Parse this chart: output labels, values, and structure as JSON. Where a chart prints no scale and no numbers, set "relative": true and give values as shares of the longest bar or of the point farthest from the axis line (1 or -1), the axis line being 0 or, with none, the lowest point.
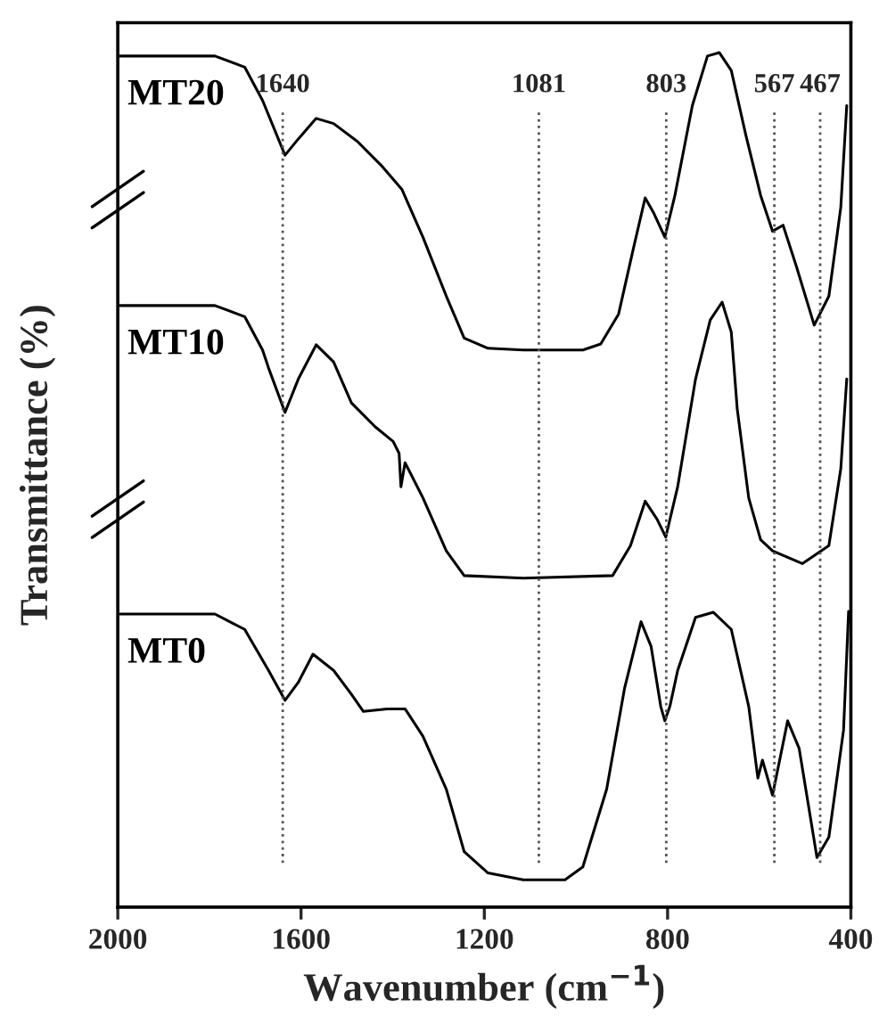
{
  "chart_data": {
    "type": "line",
    "relative": true,
    "xlabel": "Wavenumber (cm$^{−1}$)",
    "ylabel": "Transmittance (%)",
    "xlim": [
      2000,
      400
    ],
    "xticks": [
      2000,
      1600,
      1200,
      800,
      400
    ],
    "tick_labels": "x",
    "grid": false,
    "legend": false,
    "marker": "none",
    "line_style": "solid",
    "series": [
      {
        "name": "MT20",
        "color": "#000000",
        "x": [
          1995,
          1788,
          1723,
          1684,
          1635,
          1606,
          1567,
          1529,
          1477,
          1425,
          1380,
          1334,
          1283,
          1244,
          1192,
          1115,
          985,
          946,
          907,
          875,
          849,
          830,
          806,
          784,
          746,
          713,
          687,
          661,
          629,
          597,
          571,
          548,
          519,
          480,
          448,
          422,
          409
        ],
        "values": [
          0.996,
          0.996,
          0.983,
          0.944,
          0.88,
          0.899,
          0.923,
          0.917,
          0.896,
          0.868,
          0.84,
          0.784,
          0.715,
          0.666,
          0.654,
          0.652,
          0.652,
          0.659,
          0.694,
          0.77,
          0.83,
          0.812,
          0.784,
          0.833,
          0.938,
          0.996,
          1.0,
          0.979,
          0.903,
          0.833,
          0.791,
          0.798,
          0.75,
          0.681,
          0.715,
          0.819,
          0.938
        ]
      },
      {
        "name": "MT10",
        "color": "#000000",
        "x": [
          1995,
          1788,
          1723,
          1684,
          1671,
          1635,
          1606,
          1567,
          1529,
          1490,
          1438,
          1399,
          1386,
          1382,
          1373,
          1334,
          1283,
          1244,
          1115,
          920,
          881,
          849,
          823,
          804,
          778,
          739,
          707,
          681,
          661,
          648,
          623,
          597,
          571,
          506,
          448,
          422,
          409
        ],
        "values": [
          0.704,
          0.704,
          0.691,
          0.652,
          0.631,
          0.579,
          0.618,
          0.658,
          0.638,
          0.59,
          0.562,
          0.545,
          0.531,
          0.492,
          0.52,
          0.479,
          0.417,
          0.388,
          0.385,
          0.388,
          0.423,
          0.475,
          0.454,
          0.433,
          0.492,
          0.618,
          0.687,
          0.708,
          0.673,
          0.583,
          0.479,
          0.43,
          0.417,
          0.402,
          0.423,
          0.513,
          0.618
        ]
      },
      {
        "name": "MT0",
        "color": "#000000",
        "x": [
          1995,
          1788,
          1723,
          1671,
          1635,
          1606,
          1574,
          1529,
          1490,
          1464,
          1412,
          1373,
          1334,
          1283,
          1244,
          1192,
          1115,
          1024,
          985,
          933,
          894,
          858,
          836,
          815,
          806,
          795,
          778,
          739,
          700,
          661,
          623,
          603,
          593,
          571,
          538,
          513,
          474,
          448,
          416,
          405
        ],
        "values": [
          0.343,
          0.343,
          0.325,
          0.277,
          0.242,
          0.263,
          0.296,
          0.277,
          0.249,
          0.229,
          0.232,
          0.232,
          0.2,
          0.138,
          0.065,
          0.04,
          0.032,
          0.032,
          0.047,
          0.138,
          0.256,
          0.334,
          0.305,
          0.235,
          0.218,
          0.235,
          0.277,
          0.339,
          0.345,
          0.325,
          0.235,
          0.151,
          0.172,
          0.131,
          0.218,
          0.186,
          0.058,
          0.082,
          0.207,
          0.346
        ]
      }
    ],
    "ref_lines": [
      {
        "axis": "x",
        "value": 1640,
        "label": "1640",
        "line_style": "dotted",
        "color": "#555555"
      },
      {
        "axis": "x",
        "value": 1081,
        "label": "1081",
        "line_style": "dotted",
        "color": "#555555"
      },
      {
        "axis": "x",
        "value": 803,
        "label": "803",
        "line_style": "dotted",
        "color": "#555555"
      },
      {
        "axis": "x",
        "value": 567,
        "label": "567",
        "line_style": "dotted",
        "color": "#555555"
      },
      {
        "axis": "x",
        "value": 467,
        "label": "467",
        "line_style": "dotted",
        "color": "#555555"
      }
    ]
  }
}
